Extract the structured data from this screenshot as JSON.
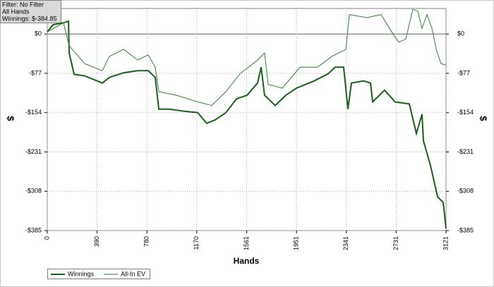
{
  "chart_data": {
    "type": "line",
    "x_label": "Hands",
    "y_label": "$",
    "annotations": [
      "Filter: No Filter",
      "All Hands",
      "Winnings: $-384.85"
    ],
    "xlim": [
      0,
      3121
    ],
    "xticks": [
      0,
      390,
      780,
      1170,
      1561,
      1951,
      2341,
      2731,
      3121
    ],
    "ylim": [
      -385,
      50
    ],
    "yticks": [
      {
        "value": 0,
        "label": "$0"
      },
      {
        "value": -77,
        "label": "-$77"
      },
      {
        "value": -154,
        "label": "-$154"
      },
      {
        "value": -231,
        "label": "-$231"
      },
      {
        "value": -308,
        "label": "-$308"
      },
      {
        "value": -385,
        "label": "-$385"
      }
    ],
    "grid": true,
    "legend": "bottom-left",
    "series": [
      {
        "name": "Winnings",
        "color": "#1b5e1b",
        "width": 2,
        "x": [
          0,
          44,
          127,
          166,
          171,
          210,
          293,
          431,
          486,
          597,
          707,
          790,
          845,
          873,
          956,
          1066,
          1177,
          1248,
          1315,
          1398,
          1481,
          1563,
          1646,
          1674,
          1701,
          1784,
          1867,
          1950,
          2088,
          2198,
          2254,
          2320,
          2353,
          2381,
          2475,
          2530,
          2547,
          2640,
          2723,
          2834,
          2889,
          2933,
          2944,
          2999,
          3055,
          3099,
          3121
        ],
        "values": [
          4,
          18,
          22,
          25,
          -37,
          -79,
          -82,
          -96,
          -85,
          -76,
          -72,
          -72,
          -85,
          -147,
          -147,
          -151,
          -154,
          -175,
          -168,
          -154,
          -127,
          -120,
          -96,
          -65,
          -120,
          -140,
          -120,
          -106,
          -92,
          -78,
          -65,
          -65,
          -147,
          -96,
          -92,
          -96,
          -133,
          -110,
          -133,
          -137,
          -195,
          -157,
          -209,
          -257,
          -319,
          -330,
          -381
        ]
      },
      {
        "name": "All-In EV",
        "color": "#2f7f2f",
        "width": 1,
        "x": [
          0,
          127,
          171,
          293,
          431,
          486,
          597,
          707,
          790,
          845,
          873,
          1011,
          1177,
          1287,
          1398,
          1508,
          1646,
          1701,
          1729,
          1840,
          1978,
          2116,
          2226,
          2337,
          2364,
          2502,
          2613,
          2696,
          2751,
          2806,
          2861,
          2900,
          2933,
          2972,
          3011,
          3044,
          3082,
          3121
        ],
        "values": [
          4,
          22,
          -23,
          -58,
          -72,
          -44,
          -30,
          -51,
          -41,
          -65,
          -113,
          -120,
          -133,
          -140,
          -113,
          -78,
          -51,
          -37,
          -99,
          -106,
          -65,
          -65,
          -44,
          -30,
          38,
          32,
          38,
          4,
          -16,
          -10,
          48,
          45,
          11,
          38,
          11,
          -30,
          -58,
          -61
        ]
      }
    ]
  }
}
